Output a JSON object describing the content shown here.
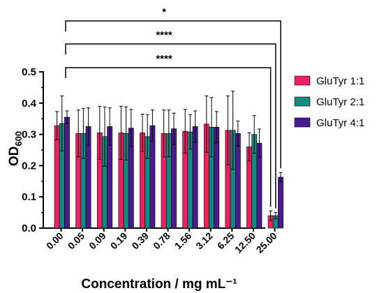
{
  "chart_data": {
    "type": "bar",
    "categories": [
      "0.00",
      "0.05",
      "0.09",
      "0.19",
      "0.39",
      "0.78",
      "1.56",
      "3.12",
      "6.25",
      "12.50",
      "25.00"
    ],
    "series": [
      {
        "name": "GluTyr 1:1",
        "color": "#ee1f63",
        "values": [
          0.328,
          0.303,
          0.305,
          0.305,
          0.305,
          0.303,
          0.31,
          0.333,
          0.313,
          0.26,
          0.04
        ],
        "errors": [
          0.045,
          0.075,
          0.085,
          0.085,
          0.06,
          0.075,
          0.07,
          0.09,
          0.11,
          0.045,
          0.015
        ]
      },
      {
        "name": "GluTyr 2:1",
        "color": "#138a80",
        "values": [
          0.335,
          0.303,
          0.293,
          0.303,
          0.293,
          0.303,
          0.308,
          0.323,
          0.313,
          0.3,
          0.04
        ],
        "errors": [
          0.088,
          0.08,
          0.095,
          0.085,
          0.07,
          0.075,
          0.055,
          0.095,
          0.125,
          0.06,
          0.01
        ]
      },
      {
        "name": "GluTyr 4:1",
        "color": "#4b1a8c",
        "values": [
          0.355,
          0.325,
          0.325,
          0.32,
          0.328,
          0.318,
          0.325,
          0.323,
          0.303,
          0.272,
          0.163
        ],
        "errors": [
          0.02,
          0.06,
          0.06,
          0.06,
          0.05,
          0.05,
          0.05,
          0.05,
          0.04,
          0.045,
          0.015
        ]
      }
    ],
    "xlabel": "Concentration / mg mL⁻¹",
    "ylabel_main": "OD",
    "ylabel_sub": "600",
    "ylim": [
      0,
      0.5
    ],
    "yticks": [
      "0.0",
      "0.1",
      "0.2",
      "0.3",
      "0.4",
      "0.5"
    ],
    "legend_position": "right",
    "grid": false,
    "significance": [
      {
        "label": "*",
        "from": "0.00",
        "to": "25.00",
        "to_series": 2
      },
      {
        "label": "****",
        "from": "0.00",
        "to": "25.00",
        "to_series": 1
      },
      {
        "label": "****",
        "from": "0.00",
        "to": "25.00",
        "to_series": 0
      }
    ]
  }
}
